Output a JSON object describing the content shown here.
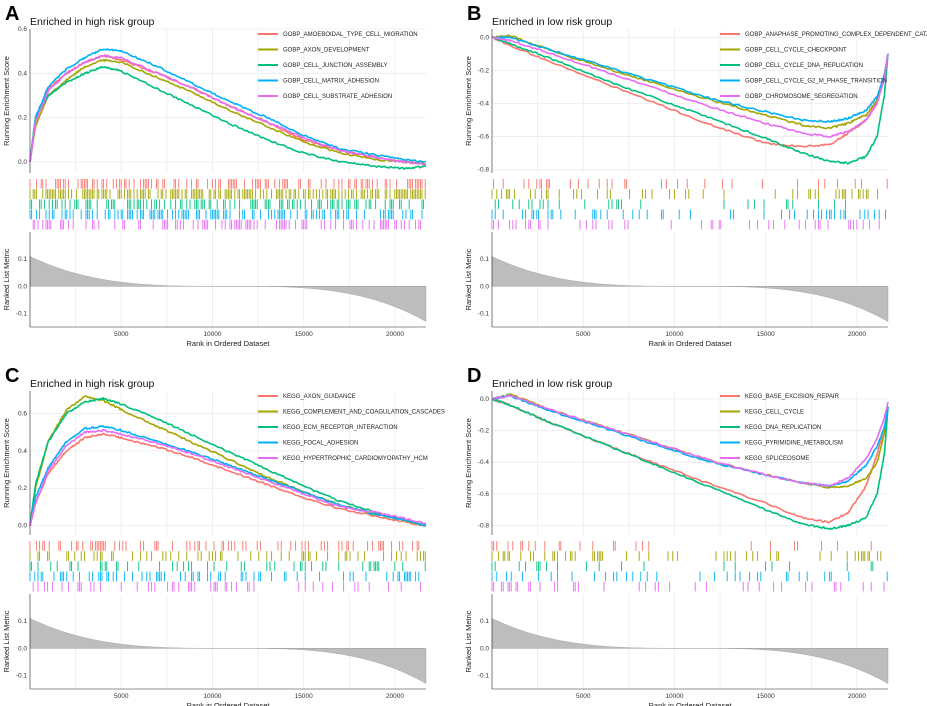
{
  "chart_data": [
    {
      "panel": "A",
      "type": "line",
      "title": "Enriched in high risk group",
      "ylabel": "Running Enrichment Score",
      "metric_ylabel": "Ranked List Metric",
      "xlabel": "Rank in Ordered Dataset",
      "xlim": [
        0,
        21700
      ],
      "ylim": [
        -0.05,
        0.6
      ],
      "yticks": [
        "0.0",
        "0.2",
        "0.4",
        "0.6"
      ],
      "ytick_values": [
        0,
        0.2,
        0.4,
        0.6
      ],
      "xticks": [
        "5000",
        "10000",
        "15000",
        "20000"
      ],
      "xtick_values": [
        5000,
        10000,
        15000,
        20000
      ],
      "metric_ylim": [
        -0.15,
        0.2
      ],
      "metric_yticks": [
        "0.1",
        "0.0",
        "-0.1"
      ],
      "metric_ytick_values": [
        0.1,
        0,
        -0.1
      ],
      "x": [
        0,
        300,
        1000,
        2000,
        3000,
        4000,
        5000,
        7000,
        9000,
        11000,
        13000,
        15000,
        17000,
        19000,
        20500,
        21700
      ],
      "series": [
        {
          "name": "GOBP_AMOEBOIDAL_TYPE_CELL_MIGRATION",
          "color": "#F8766D",
          "values": [
            0,
            0.18,
            0.33,
            0.4,
            0.45,
            0.48,
            0.46,
            0.4,
            0.33,
            0.25,
            0.18,
            0.1,
            0.05,
            0.02,
            0.0,
            -0.01
          ],
          "rug_density": 0.8
        },
        {
          "name": "GOBP_AXON_DEVELOPMENT",
          "color": "#A3A500",
          "values": [
            0,
            0.16,
            0.3,
            0.37,
            0.43,
            0.46,
            0.45,
            0.38,
            0.31,
            0.23,
            0.16,
            0.09,
            0.04,
            0.01,
            0.0,
            -0.01
          ],
          "rug_density": 1.0
        },
        {
          "name": "GOBP_CELL_JUNCTION_ASSEMBLY",
          "color": "#00BF7D",
          "values": [
            0,
            0.2,
            0.3,
            0.36,
            0.4,
            0.43,
            0.41,
            0.33,
            0.25,
            0.17,
            0.1,
            0.04,
            0.0,
            -0.02,
            -0.03,
            -0.02
          ],
          "rug_density": 0.75
        },
        {
          "name": "GOBP_CELL_MATRIX_ADHESION",
          "color": "#00B0F6",
          "values": [
            0,
            0.2,
            0.34,
            0.42,
            0.47,
            0.51,
            0.5,
            0.43,
            0.35,
            0.27,
            0.2,
            0.12,
            0.06,
            0.03,
            0.01,
            0.0
          ],
          "rug_density": 0.7
        },
        {
          "name": "GOBP_CELL_SUBSTRATE_ADHESION",
          "color": "#E76BF3",
          "values": [
            0,
            0.18,
            0.32,
            0.4,
            0.45,
            0.48,
            0.47,
            0.4,
            0.33,
            0.25,
            0.18,
            0.11,
            0.05,
            0.02,
            0.0,
            -0.01
          ],
          "rug_density": 0.65
        }
      ]
    },
    {
      "panel": "B",
      "type": "line",
      "title": "Enriched in low risk group",
      "ylabel": "Running Enrichment Score",
      "metric_ylabel": "Ranked List Metric",
      "xlabel": "Rank in Ordered Dataset",
      "xlim": [
        0,
        21700
      ],
      "ylim": [
        -0.82,
        0.05
      ],
      "yticks": [
        "0.0",
        "-0.2",
        "-0.4",
        "-0.6",
        "-0.8"
      ],
      "ytick_values": [
        0,
        -0.2,
        -0.4,
        -0.6,
        -0.8
      ],
      "xticks": [
        "5000",
        "10000",
        "15000",
        "20000"
      ],
      "xtick_values": [
        5000,
        10000,
        15000,
        20000
      ],
      "metric_ylim": [
        -0.15,
        0.2
      ],
      "metric_yticks": [
        "0.1",
        "0.0",
        "-0.1"
      ],
      "metric_ytick_values": [
        0.1,
        0,
        -0.1
      ],
      "x": [
        0,
        1000,
        3000,
        6000,
        9000,
        12000,
        15000,
        17000,
        18500,
        19500,
        20500,
        21100,
        21500,
        21700
      ],
      "series": [
        {
          "name": "GOBP_ANAPHASE_PROMOTING_COMPLEX_DEPENDENT_CATABOLIC_PROCESS",
          "color": "#F8766D",
          "values": [
            0,
            -0.05,
            -0.14,
            -0.27,
            -0.4,
            -0.53,
            -0.64,
            -0.66,
            -0.65,
            -0.58,
            -0.5,
            -0.38,
            -0.22,
            -0.1
          ],
          "rug_density": 0.3
        },
        {
          "name": "GOBP_CELL_CYCLE_CHECKPOINT",
          "color": "#A3A500",
          "values": [
            0,
            0.01,
            -0.07,
            -0.18,
            -0.28,
            -0.38,
            -0.47,
            -0.53,
            -0.55,
            -0.52,
            -0.47,
            -0.38,
            -0.25,
            -0.1
          ],
          "rug_density": 0.45
        },
        {
          "name": "GOBP_CELL_CYCLE_DNA_REPLICATION",
          "color": "#00BF7D",
          "values": [
            0,
            -0.04,
            -0.12,
            -0.25,
            -0.37,
            -0.49,
            -0.61,
            -0.7,
            -0.75,
            -0.76,
            -0.72,
            -0.6,
            -0.35,
            -0.1
          ],
          "rug_density": 0.3
        },
        {
          "name": "GOBP_CELL_CYCLE_G2_M_PHASE_TRANSITION",
          "color": "#00B0F6",
          "values": [
            0,
            0.0,
            -0.07,
            -0.17,
            -0.27,
            -0.37,
            -0.45,
            -0.5,
            -0.51,
            -0.49,
            -0.44,
            -0.36,
            -0.23,
            -0.1
          ],
          "rug_density": 0.6
        },
        {
          "name": "GOBP_CHROMOSOME_SEGREGATION",
          "color": "#E76BF3",
          "values": [
            0,
            -0.02,
            -0.09,
            -0.2,
            -0.31,
            -0.42,
            -0.52,
            -0.58,
            -0.6,
            -0.57,
            -0.5,
            -0.4,
            -0.25,
            -0.1
          ],
          "rug_density": 0.55
        }
      ]
    },
    {
      "panel": "C",
      "type": "line",
      "title": "Enriched in high risk group",
      "ylabel": "Running Enrichment Score",
      "metric_ylabel": "Ranked List Metric",
      "xlabel": "Rank in Ordered Dataset",
      "xlim": [
        0,
        21700
      ],
      "ylim": [
        -0.05,
        0.72
      ],
      "yticks": [
        "0.0",
        "0.2",
        "0.4",
        "0.6"
      ],
      "ytick_values": [
        0,
        0.2,
        0.4,
        0.6
      ],
      "xticks": [
        "5000",
        "10000",
        "15000",
        "20000"
      ],
      "xtick_values": [
        5000,
        10000,
        15000,
        20000
      ],
      "metric_ylim": [
        -0.15,
        0.2
      ],
      "metric_yticks": [
        "0.1",
        "0.0",
        "-0.1"
      ],
      "metric_ytick_values": [
        0.1,
        0,
        -0.1
      ],
      "x": [
        0,
        300,
        1000,
        2000,
        3000,
        4000,
        5000,
        7000,
        9000,
        11000,
        13000,
        15000,
        17000,
        19000,
        20500,
        21700
      ],
      "series": [
        {
          "name": "KEGG_AXON_GUIDANCE",
          "color": "#F8766D",
          "values": [
            0,
            0.12,
            0.28,
            0.4,
            0.47,
            0.49,
            0.47,
            0.42,
            0.36,
            0.29,
            0.22,
            0.15,
            0.09,
            0.05,
            0.02,
            0.0
          ],
          "rug_density": 0.5
        },
        {
          "name": "KEGG_COMPLEMENT_AND_COAGULATION_CASCADES",
          "color": "#A3A500",
          "values": [
            0,
            0.2,
            0.45,
            0.62,
            0.69,
            0.67,
            0.62,
            0.53,
            0.44,
            0.35,
            0.26,
            0.18,
            0.11,
            0.06,
            0.03,
            0.0
          ],
          "rug_density": 0.45
        },
        {
          "name": "KEGG_ECM_RECEPTOR_INTERACTION",
          "color": "#00BF7D",
          "values": [
            0,
            0.22,
            0.45,
            0.6,
            0.66,
            0.68,
            0.65,
            0.57,
            0.48,
            0.39,
            0.3,
            0.21,
            0.13,
            0.07,
            0.03,
            0.0
          ],
          "rug_density": 0.4
        },
        {
          "name": "KEGG_FOCAL_ADHESION",
          "color": "#00B0F6",
          "values": [
            0,
            0.15,
            0.31,
            0.45,
            0.52,
            0.53,
            0.51,
            0.45,
            0.39,
            0.32,
            0.25,
            0.18,
            0.11,
            0.06,
            0.03,
            0.0
          ],
          "rug_density": 0.5
        },
        {
          "name": "KEGG_HYPERTROPHIC_CARDIOMYOPATHY_HCM",
          "color": "#E76BF3",
          "values": [
            0,
            0.12,
            0.29,
            0.43,
            0.5,
            0.51,
            0.49,
            0.44,
            0.38,
            0.31,
            0.24,
            0.17,
            0.1,
            0.07,
            0.04,
            0.01
          ],
          "rug_density": 0.35
        }
      ]
    },
    {
      "panel": "D",
      "type": "line",
      "title": "Enriched in low risk group",
      "ylabel": "Running Enrichment Score",
      "metric_ylabel": "Ranked List Metric",
      "xlabel": "Rank in Ordered Dataset",
      "xlim": [
        0,
        21700
      ],
      "ylim": [
        -0.86,
        0.05
      ],
      "yticks": [
        "0.0",
        "-0.2",
        "-0.4",
        "-0.6",
        "-0.8"
      ],
      "ytick_values": [
        0,
        -0.2,
        -0.4,
        -0.6,
        -0.8
      ],
      "xticks": [
        "5000",
        "10000",
        "15000",
        "20000"
      ],
      "xtick_values": [
        5000,
        10000,
        15000,
        20000
      ],
      "metric_ylim": [
        -0.15,
        0.2
      ],
      "metric_yticks": [
        "0.1",
        "0.0",
        "-0.1"
      ],
      "metric_ytick_values": [
        0.1,
        0,
        -0.1
      ],
      "x": [
        0,
        1000,
        3000,
        6000,
        9000,
        12000,
        15000,
        17000,
        18500,
        19500,
        20500,
        21100,
        21500,
        21700
      ],
      "series": [
        {
          "name": "KEGG_BASE_EXCISION_REPAIR",
          "color": "#F8766D",
          "values": [
            0,
            -0.04,
            -0.14,
            -0.28,
            -0.41,
            -0.54,
            -0.66,
            -0.75,
            -0.78,
            -0.72,
            -0.55,
            -0.35,
            -0.18,
            -0.05
          ],
          "rug_density": 0.25
        },
        {
          "name": "KEGG_CELL_CYCLE",
          "color": "#A3A500",
          "values": [
            0,
            0.03,
            -0.06,
            -0.17,
            -0.28,
            -0.39,
            -0.48,
            -0.53,
            -0.56,
            -0.55,
            -0.5,
            -0.4,
            -0.22,
            -0.05
          ],
          "rug_density": 0.6
        },
        {
          "name": "KEGG_DNA_REPLICATION",
          "color": "#00BF7D",
          "values": [
            0,
            -0.04,
            -0.14,
            -0.28,
            -0.42,
            -0.56,
            -0.7,
            -0.79,
            -0.82,
            -0.8,
            -0.75,
            -0.6,
            -0.35,
            -0.05
          ],
          "rug_density": 0.25
        },
        {
          "name": "KEGG_PYRIMIDINE_METABOLISM",
          "color": "#00B0F6",
          "values": [
            0,
            0.02,
            -0.07,
            -0.18,
            -0.29,
            -0.4,
            -0.48,
            -0.53,
            -0.55,
            -0.52,
            -0.42,
            -0.3,
            -0.18,
            -0.05
          ],
          "rug_density": 0.4
        },
        {
          "name": "KEGG_SPLICEOSOME",
          "color": "#E76BF3",
          "values": [
            0,
            0.02,
            -0.06,
            -0.17,
            -0.28,
            -0.39,
            -0.48,
            -0.53,
            -0.55,
            -0.5,
            -0.38,
            -0.25,
            -0.12,
            -0.02
          ],
          "rug_density": 0.45
        }
      ]
    }
  ]
}
